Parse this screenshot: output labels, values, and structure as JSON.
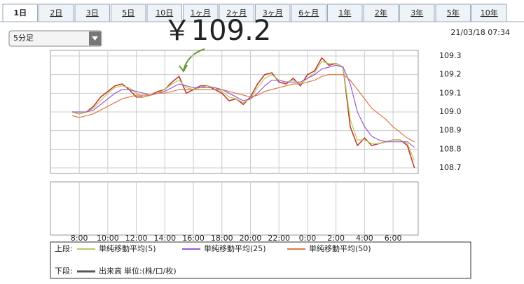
{
  "tabs": [
    "1日",
    "2日",
    "3日",
    "5日",
    "10日",
    "1ヶ月",
    "2ヶ月",
    "3ヶ月",
    "6ヶ月",
    "1年",
    "2年",
    "3年",
    "5年",
    "10年"
  ],
  "dropdown": "5分足",
  "timestamp": "21/03/18 07:34",
  "chart_data": {
    "type": "line",
    "annotation": "￥109.2",
    "categories": [
      null,
      "8:00",
      null,
      null,
      null,
      "10:00",
      null,
      null,
      null,
      "12:00",
      null,
      null,
      null,
      "14:00",
      null,
      null,
      null,
      "16:00",
      null,
      null,
      null,
      "18:00",
      null,
      null,
      null,
      "20:00",
      null,
      null,
      null,
      "22:00",
      null,
      null,
      null,
      "0:00",
      null,
      null,
      null,
      "2:00",
      null,
      null,
      null,
      "4:00",
      null,
      null,
      null,
      "6:00",
      null,
      null,
      null
    ],
    "series": [
      {
        "color": "#c0392b",
        "values": [
          109.0,
          108.99,
          109.0,
          109.03,
          109.08,
          109.11,
          109.14,
          109.15,
          109.12,
          109.08,
          109.08,
          109.09,
          109.11,
          109.12,
          109.16,
          109.19,
          109.1,
          109.12,
          109.14,
          109.14,
          109.12,
          109.1,
          109.06,
          109.07,
          109.04,
          109.08,
          109.15,
          109.2,
          109.21,
          109.16,
          109.15,
          109.18,
          109.14,
          109.2,
          109.22,
          109.29,
          109.25,
          109.26,
          109.24,
          108.92,
          108.82,
          108.86,
          108.82,
          108.83,
          108.84,
          108.85,
          108.85,
          108.82,
          108.7
        ]
      },
      {
        "name": "単純移動平均(5)",
        "color": "#b5cc5a",
        "values": [
          109.0,
          108.99,
          109.0,
          109.02,
          109.06,
          109.1,
          109.13,
          109.14,
          109.13,
          109.1,
          109.08,
          109.09,
          109.1,
          109.12,
          109.15,
          109.17,
          109.13,
          109.12,
          109.13,
          109.14,
          109.13,
          109.11,
          109.08,
          109.07,
          109.05,
          109.07,
          109.13,
          109.18,
          109.2,
          109.17,
          109.16,
          109.17,
          109.15,
          109.18,
          109.21,
          109.27,
          109.26,
          109.26,
          109.24,
          108.96,
          108.85,
          108.85,
          108.83,
          108.83,
          108.84,
          108.85,
          108.85,
          108.83,
          108.74
        ]
      },
      {
        "name": "単純移動平均(25)",
        "color": "#9b59d6",
        "values": [
          109.0,
          109.0,
          109.0,
          109.01,
          109.04,
          109.07,
          109.1,
          109.12,
          109.12,
          109.11,
          109.1,
          109.09,
          109.1,
          109.11,
          109.13,
          109.15,
          109.14,
          109.13,
          109.13,
          109.13,
          109.13,
          109.12,
          109.1,
          109.08,
          109.06,
          109.07,
          109.1,
          109.14,
          109.17,
          109.17,
          109.16,
          109.16,
          109.16,
          109.18,
          109.2,
          109.23,
          109.24,
          109.25,
          109.24,
          109.15,
          109.0,
          108.92,
          108.87,
          108.85,
          108.84,
          108.84,
          108.84,
          108.84,
          108.81
        ]
      },
      {
        "name": "単純移動平均(50)",
        "color": "#e0773f",
        "values": [
          108.98,
          108.97,
          108.98,
          108.99,
          109.01,
          109.03,
          109.05,
          109.07,
          109.08,
          109.09,
          109.09,
          109.09,
          109.1,
          109.1,
          109.11,
          109.12,
          109.12,
          109.12,
          109.12,
          109.12,
          109.12,
          109.12,
          109.11,
          109.1,
          109.09,
          109.08,
          109.09,
          109.11,
          109.12,
          109.13,
          109.14,
          109.15,
          109.15,
          109.16,
          109.17,
          109.19,
          109.2,
          109.2,
          109.2,
          109.17,
          109.12,
          109.07,
          109.02,
          108.99,
          108.96,
          108.92,
          108.89,
          108.86,
          108.84
        ]
      }
    ],
    "ylim": [
      108.67,
      109.33
    ],
    "yticks": [
      108.7,
      108.8,
      108.9,
      {
        "value": 109.0,
        "label": "109.0"
      },
      109.1,
      109.2,
      109.3
    ],
    "grid": true
  },
  "legend": {
    "upper_label": "上段:",
    "lower_label": "下段:",
    "volume_name": "出来高",
    "unit": "単位:(株/口/枚)"
  }
}
